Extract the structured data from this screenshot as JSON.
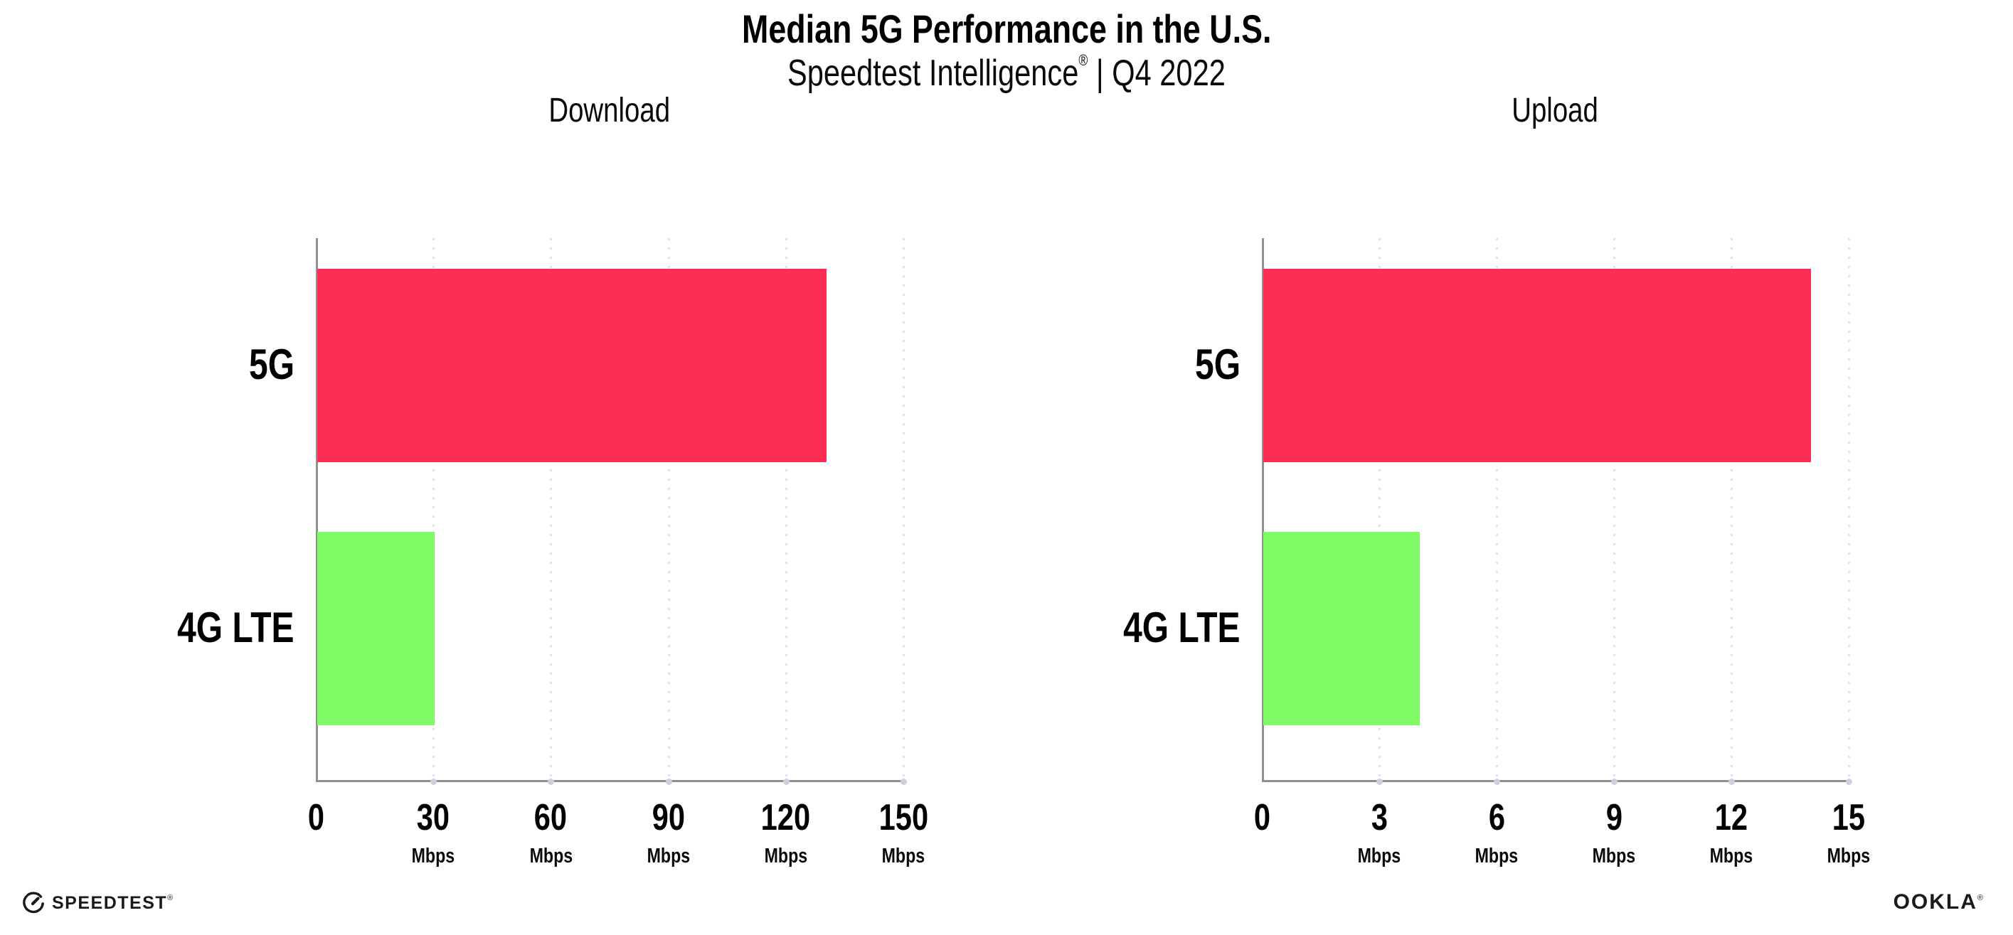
{
  "header": {
    "title": "Median 5G Performance in the U.S.",
    "subtitle_brand": "Speedtest Intelligence",
    "subtitle_reg": "®",
    "subtitle_rest": " | Q4 2022"
  },
  "chart_data": [
    {
      "type": "bar",
      "orientation": "horizontal",
      "title": "Download",
      "categories": [
        "5G",
        "4G LTE"
      ],
      "values": [
        130,
        30
      ],
      "unit": "Mbps",
      "xlim": [
        0,
        150
      ],
      "xticks": [
        0,
        30,
        60,
        90,
        120,
        150
      ],
      "bar_colors": [
        "#FD2D54",
        "#80FA64"
      ],
      "grid": "vertical-dotted",
      "legend": "none"
    },
    {
      "type": "bar",
      "orientation": "horizontal",
      "title": "Upload",
      "categories": [
        "5G",
        "4G LTE"
      ],
      "values": [
        14,
        4
      ],
      "unit": "Mbps",
      "xlim": [
        0,
        15
      ],
      "xticks": [
        0,
        3,
        6,
        9,
        12,
        15
      ],
      "bar_colors": [
        "#FD2D54",
        "#80FA64"
      ],
      "grid": "vertical-dotted",
      "legend": "none"
    }
  ],
  "colors": {
    "bar_5g": "#FD2D54",
    "bar_4g_lte": "#80FA64",
    "axis": "#8f8f8f",
    "gridline": "#e2e2ee",
    "text": "#000000"
  },
  "footer": {
    "speedtest_label": "SPEEDTEST",
    "speedtest_reg": "®",
    "ookla_label": "OOKLA",
    "ookla_reg": "®"
  }
}
